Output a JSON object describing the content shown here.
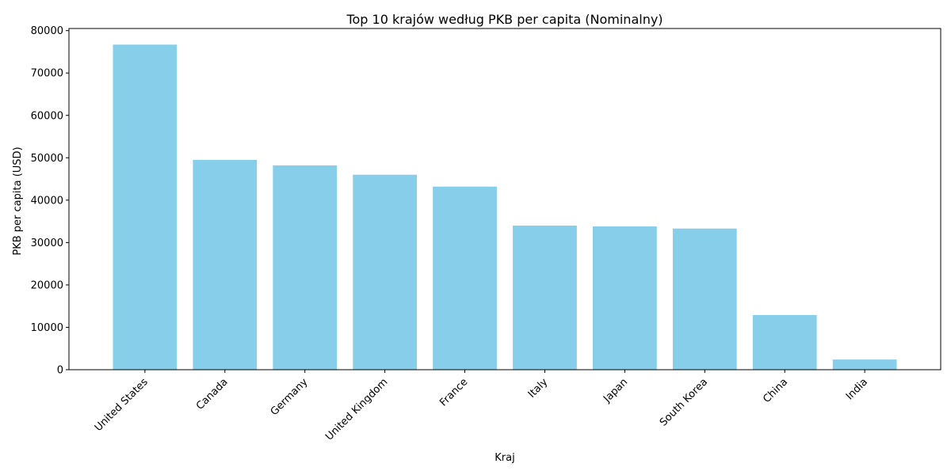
{
  "chart_data": {
    "type": "bar",
    "title": "Top 10 krajów według PKB per capita (Nominalny)",
    "xlabel": "Kraj",
    "ylabel": "PKB per capita (USD)",
    "categories": [
      "United States",
      "Canada",
      "Germany",
      "United Kingdom",
      "France",
      "Italy",
      "Japan",
      "South Korea",
      "China",
      "India"
    ],
    "values": [
      76700,
      49500,
      48200,
      46000,
      43200,
      34000,
      33800,
      33300,
      12900,
      2400
    ],
    "ylim": [
      0,
      80500
    ],
    "yticks": [
      0,
      10000,
      20000,
      30000,
      40000,
      50000,
      60000,
      70000,
      80000
    ],
    "ytick_labels": [
      "0",
      "10000",
      "20000",
      "30000",
      "40000",
      "50000",
      "60000",
      "70000",
      "80000"
    ],
    "bar_color": "#87ceeb",
    "grid": false,
    "legend": false
  }
}
